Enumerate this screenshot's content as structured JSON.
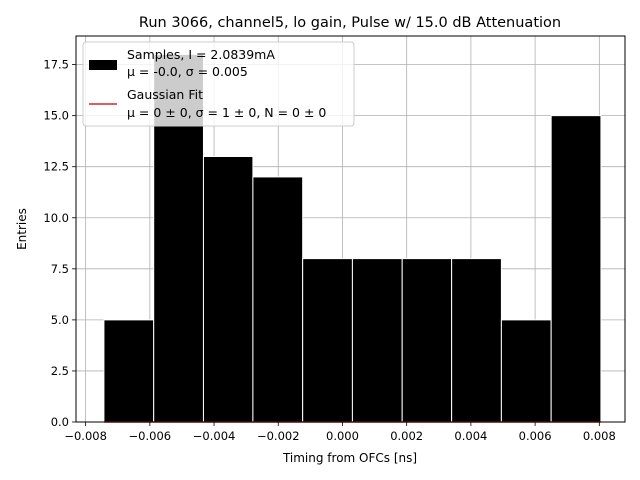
{
  "chart_data": {
    "type": "bar",
    "title": "Run 3066, channel5, lo gain, Pulse w/ 15.0 dB Attenuation",
    "xlabel": "Timing from OFCs [ns]",
    "ylabel": "Entries",
    "xlim": [
      -0.0083,
      0.0088
    ],
    "ylim": [
      0,
      18.9
    ],
    "grid": true,
    "legend_position": "top-left",
    "xticks": [
      -0.008,
      -0.006,
      -0.004,
      -0.002,
      0.0,
      0.002,
      0.004,
      0.006,
      0.008
    ],
    "xtick_labels": [
      "−0.008",
      "−0.006",
      "−0.004",
      "−0.002",
      "0.000",
      "0.002",
      "0.004",
      "0.006",
      "0.008"
    ],
    "yticks": [
      0,
      2.5,
      5,
      7.5,
      10,
      12.5,
      15,
      17.5
    ],
    "ytick_labels": [
      "0.0",
      "2.5",
      "5.0",
      "7.5",
      "10.0",
      "12.5",
      "15.0",
      "17.5"
    ],
    "bins": [
      {
        "x0": -0.00743,
        "x1": -0.00588,
        "value": 5
      },
      {
        "x0": -0.00588,
        "x1": -0.00433,
        "value": 18
      },
      {
        "x0": -0.00433,
        "x1": -0.00279,
        "value": 13
      },
      {
        "x0": -0.00279,
        "x1": -0.00124,
        "value": 12
      },
      {
        "x0": -0.00124,
        "x1": 0.00031,
        "value": 8
      },
      {
        "x0": 0.00031,
        "x1": 0.00186,
        "value": 8
      },
      {
        "x0": 0.00186,
        "x1": 0.0034,
        "value": 8
      },
      {
        "x0": 0.0034,
        "x1": 0.00495,
        "value": 8
      },
      {
        "x0": 0.00495,
        "x1": 0.0065,
        "value": 5
      },
      {
        "x0": 0.0065,
        "x1": 0.00805,
        "value": 15
      }
    ],
    "bar_color": "#000000",
    "bar_edge_color": "#ffffff",
    "fit_color": "#d62728",
    "fit_line": {
      "x": [
        -0.00743,
        0.00805
      ],
      "y": [
        0,
        0
      ]
    },
    "legend": [
      {
        "kind": "patch",
        "line1": "Samples, I = 2.0839mA",
        "line2": "μ = -0.0, σ = 0.005"
      },
      {
        "kind": "line",
        "line1": "Gaussian Fit",
        "line2": "μ = 0 ± 0, σ = 1 ± 0, N = 0 ± 0"
      }
    ]
  }
}
